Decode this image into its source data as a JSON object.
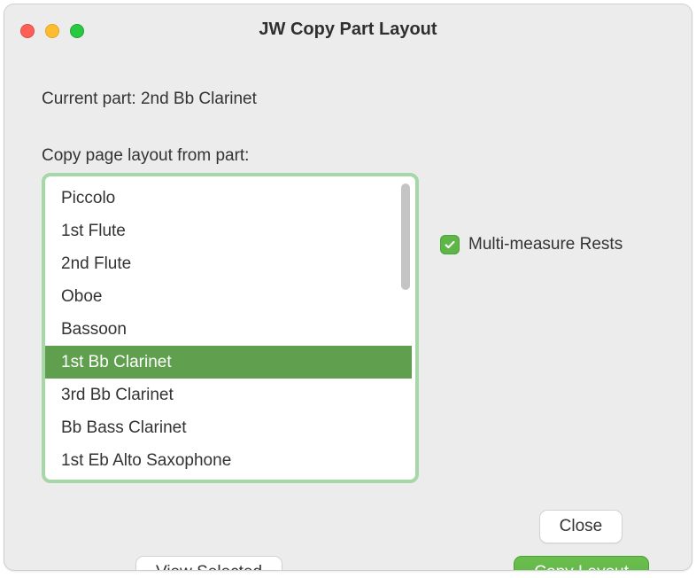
{
  "window": {
    "title": "JW Copy Part Layout",
    "current_part_prefix": "Current part: ",
    "current_part": "2nd Bb Clarinet",
    "list_label": "Copy page layout from part:",
    "accent_color": "#5fb648",
    "selection_color": "#5f9f4e",
    "list_border_color": "#a6d7a6"
  },
  "parts": [
    {
      "label": "Piccolo",
      "selected": false
    },
    {
      "label": "1st Flute",
      "selected": false
    },
    {
      "label": "2nd Flute",
      "selected": false
    },
    {
      "label": "Oboe",
      "selected": false
    },
    {
      "label": "Bassoon",
      "selected": false
    },
    {
      "label": "1st Bb Clarinet",
      "selected": true
    },
    {
      "label": "3rd Bb Clarinet",
      "selected": false
    },
    {
      "label": "Bb Bass Clarinet",
      "selected": false
    },
    {
      "label": "1st Eb Alto Saxophone",
      "selected": false
    }
  ],
  "options": {
    "multi_measure_rests": {
      "label": "Multi-measure Rests",
      "checked": true
    }
  },
  "buttons": {
    "close": "Close",
    "view_selected": "View Selected",
    "copy_layout": "Copy Layout"
  }
}
